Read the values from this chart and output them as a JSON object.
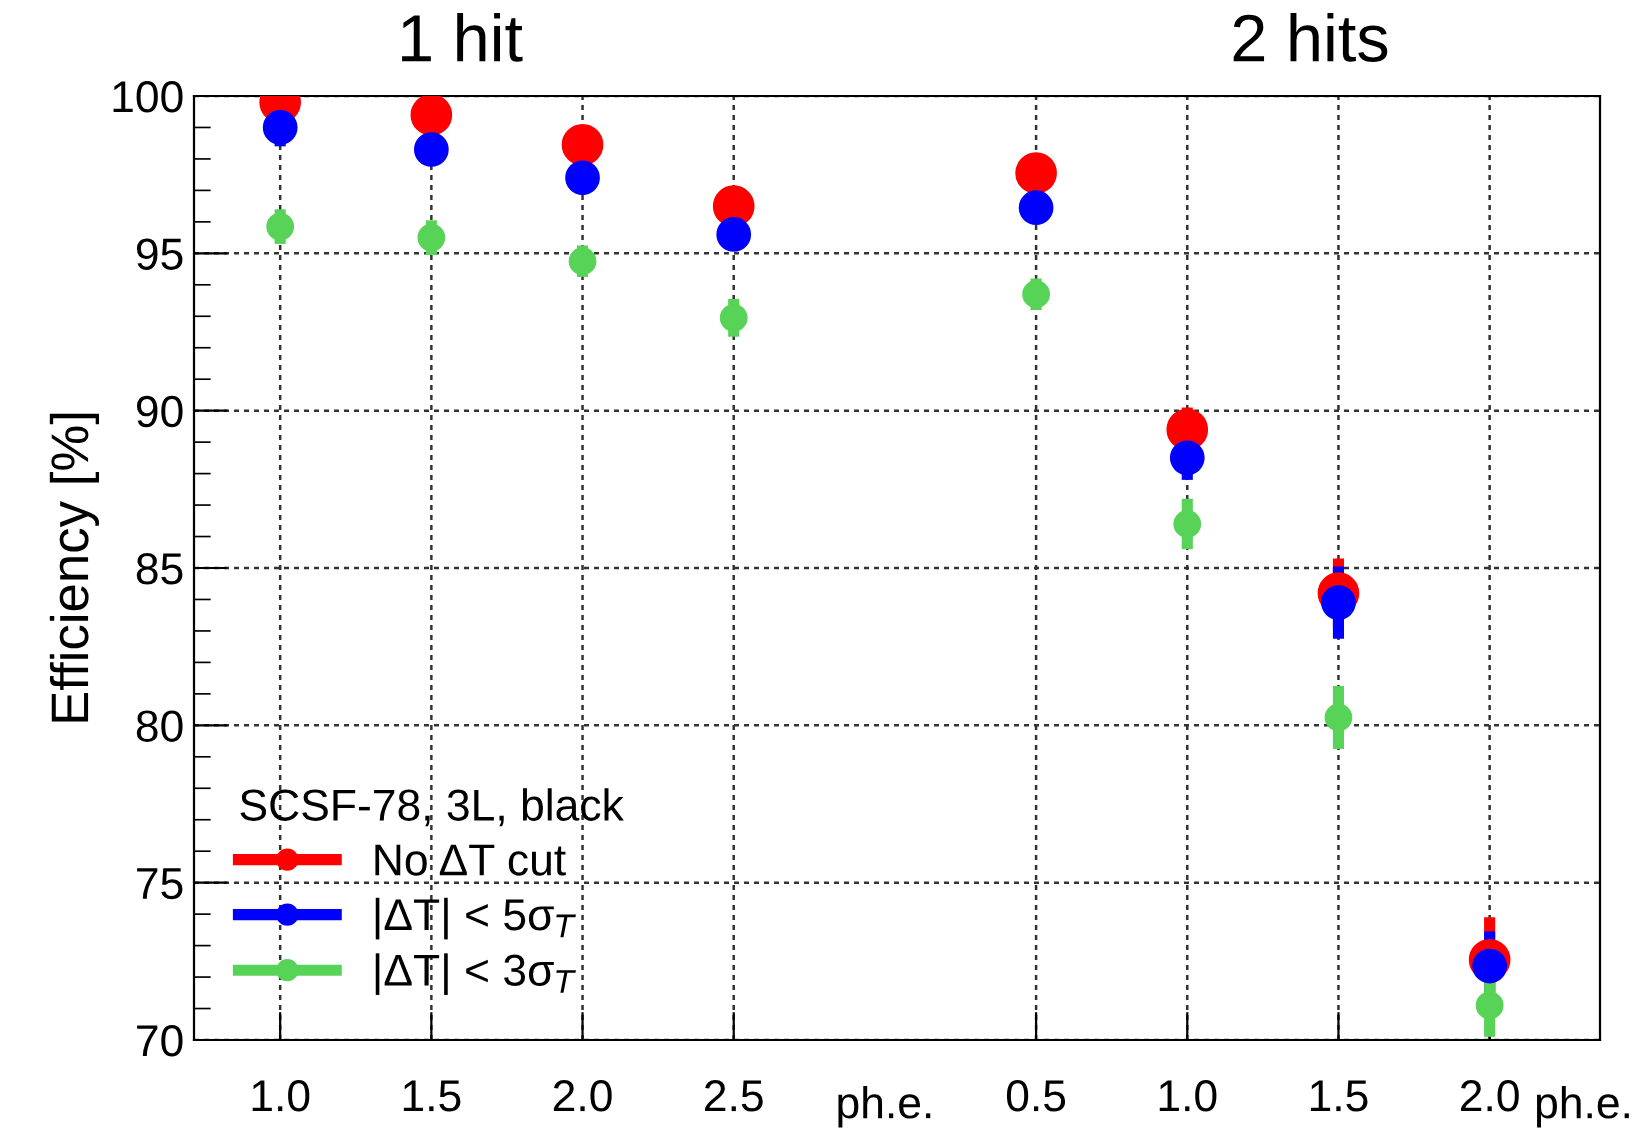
{
  "chart_data": {
    "type": "scatter",
    "ylabel": "Efficiency [%]",
    "legend_title": "SCSF-78, 3L, black",
    "annotations": [
      "1 hit",
      "2 hits",
      "ph.e.",
      "ph.e."
    ],
    "categories": [
      "1.0",
      "1.5",
      "2.0",
      "2.5",
      null,
      "0.5",
      "1.0",
      "1.5",
      "2.0"
    ],
    "series": [
      {
        "name": "No ΔT cut",
        "color": "#ff0000",
        "values": [
          99.8,
          99.4,
          98.45,
          96.5,
          null,
          97.55,
          89.4,
          84.2,
          72.55
        ],
        "errors": [
          0.3,
          0.3,
          0.4,
          0.5,
          null,
          0.5,
          0.7,
          1.1,
          1.35
        ]
      },
      {
        "name": "|ΔT| < 5σ$_{T}$",
        "color": "#0000ff",
        "values": [
          99.0,
          98.3,
          97.4,
          95.6,
          null,
          96.45,
          88.5,
          83.9,
          72.35
        ],
        "errors": [
          0.6,
          0.3,
          0.5,
          0.5,
          null,
          0.5,
          0.7,
          1.15,
          1.1
        ]
      },
      {
        "name": "|ΔT| < 3σ$_{T}$",
        "color": "#57d357",
        "values": [
          95.85,
          95.5,
          94.75,
          92.95,
          null,
          93.7,
          86.4,
          80.25,
          71.1
        ],
        "errors": [
          0.55,
          0.55,
          0.5,
          0.6,
          null,
          0.5,
          0.8,
          1.0,
          1.0
        ]
      }
    ],
    "ylim": [
      70,
      100
    ],
    "yticks": [
      70,
      75,
      80,
      85,
      90,
      95,
      100
    ],
    "grid": true,
    "legend": "bottom left",
    "marker": "circle"
  }
}
